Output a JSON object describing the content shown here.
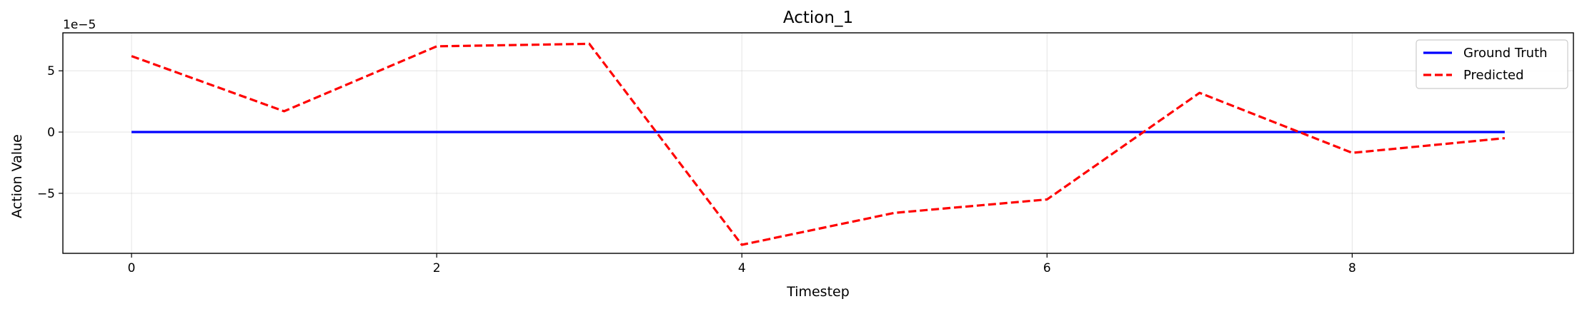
{
  "chart_data": {
    "type": "line",
    "title": "Action_1",
    "xlabel": "Timestep",
    "ylabel": "Action Value",
    "y_offset_text": "1e−5",
    "x": [
      0,
      1,
      2,
      3,
      4,
      5,
      6,
      7,
      8,
      9
    ],
    "xlim": [
      -0.45,
      9.45
    ],
    "ylim": [
      -9.9,
      8.1
    ],
    "x_ticks": [
      0,
      2,
      4,
      6,
      8
    ],
    "x_tick_labels": [
      "0",
      "2",
      "4",
      "6",
      "8"
    ],
    "y_ticks": [
      -5,
      0,
      5
    ],
    "y_tick_labels": [
      "−5",
      "0",
      "5"
    ],
    "grid": true,
    "legend_position": "upper-right",
    "series": [
      {
        "name": "Ground Truth",
        "color": "#0000ff",
        "style": "solid",
        "values": [
          0,
          0,
          0,
          0,
          0,
          0,
          0,
          0,
          0,
          0
        ]
      },
      {
        "name": "Predicted",
        "color": "#ff0000",
        "style": "dashed",
        "values": [
          6.2,
          1.7,
          7.0,
          7.2,
          -9.2,
          -6.6,
          -5.5,
          3.2,
          -1.7,
          -0.5
        ]
      }
    ]
  }
}
